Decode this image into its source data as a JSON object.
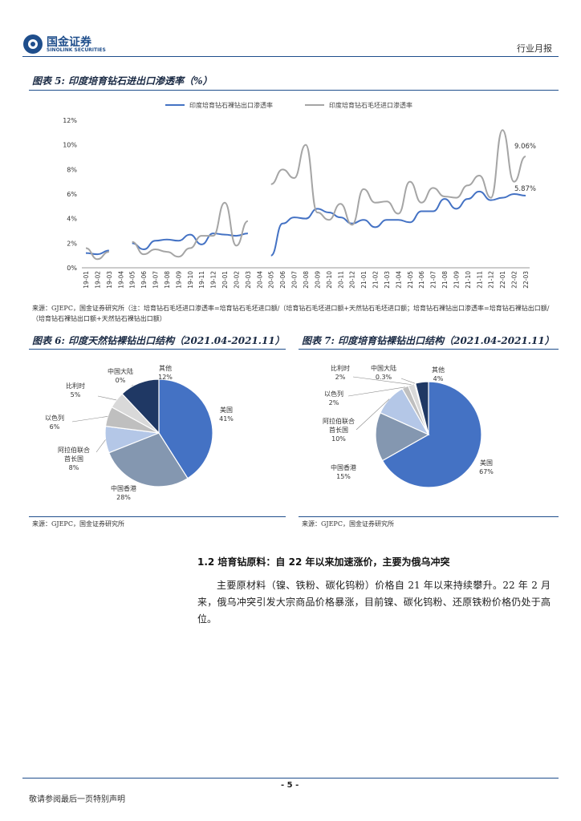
{
  "header": {
    "logo_cn": "国金证券",
    "logo_en": "SINOLINK SECURITIES",
    "report_type": "行业月报"
  },
  "fig5": {
    "title": "图表 5: 印度培育钻石进出口渗透率（%）",
    "source": "来源：GJEPC，国金证券研究所（注：培育钻石毛坯进口渗透率=培育钻石毛坯进口额/（培育钻石毛坯进口额+天然钻石毛坯进口额；培育钻石裸钻出口渗透率=培育钻石裸钻出口额/（培育钻石裸钻出口额+天然钻石裸钻出口额）",
    "chart_data": {
      "type": "line",
      "x": [
        "19-01",
        "19-02",
        "19-03",
        "19-04",
        "19-05",
        "19-06",
        "19-07",
        "19-08",
        "19-09",
        "19-10",
        "19-11",
        "19-12",
        "20-01",
        "20-02",
        "20-03",
        "20-04",
        "20-05",
        "20-06",
        "20-07",
        "20-08",
        "20-09",
        "20-10",
        "20-11",
        "20-12",
        "21-01",
        "21-02",
        "21-03",
        "21-04",
        "21-05",
        "21-06",
        "21-07",
        "21-08",
        "21-09",
        "21-10",
        "21-11",
        "21-12",
        "22-01",
        "22-02",
        "22-03"
      ],
      "yticks": [
        "0%",
        "2%",
        "4%",
        "6%",
        "8%",
        "10%",
        "12%"
      ],
      "ylim": [
        0,
        12
      ],
      "series": [
        {
          "name": "印度培育钻石裸钻出口渗透率",
          "color": "#4472c4",
          "values": [
            1.2,
            1.1,
            1.4,
            null,
            2.0,
            1.5,
            2.2,
            2.3,
            2.2,
            2.7,
            1.9,
            2.8,
            2.7,
            2.6,
            2.8,
            null,
            1.0,
            3.6,
            4.1,
            4.0,
            4.8,
            4.5,
            4.1,
            3.6,
            3.9,
            3.3,
            3.9,
            3.9,
            3.7,
            4.6,
            4.6,
            5.6,
            4.8,
            5.6,
            6.2,
            5.5,
            5.7,
            6.0,
            5.87
          ]
        },
        {
          "name": "印度培育钻石毛坯进口渗透率",
          "color": "#a5a5a5",
          "values": [
            1.6,
            0.7,
            1.3,
            null,
            2.1,
            1.1,
            1.5,
            1.3,
            0.9,
            1.6,
            2.6,
            2.6,
            5.3,
            1.8,
            3.8,
            null,
            6.8,
            8.0,
            7.3,
            10.0,
            4.5,
            3.9,
            5.2,
            3.5,
            6.4,
            5.3,
            5.4,
            4.4,
            7.0,
            5.3,
            6.5,
            5.8,
            5.7,
            6.7,
            7.5,
            5.7,
            11.2,
            7.0,
            9.06
          ]
        }
      ],
      "annotations": [
        "9.06%",
        "5.87%"
      ]
    }
  },
  "fig6": {
    "title": "图表 6: 印度天然钻裸钻出口结构（2021.04-2021.11）",
    "source": "来源：GJEPC，国金证券研究所",
    "chart_data": {
      "type": "pie",
      "slices": [
        {
          "name": "美国",
          "value": 41,
          "label": "41%",
          "color": "#4472c4"
        },
        {
          "name": "中国香港",
          "value": 28,
          "label": "28%",
          "color": "#8497b0"
        },
        {
          "name": "阿拉伯联合首长国",
          "value": 8,
          "label": "8%",
          "color": "#b4c7e7"
        },
        {
          "name": "以色列",
          "value": 6,
          "label": "6%",
          "color": "#bfbfbf"
        },
        {
          "name": "比利时",
          "value": 5,
          "label": "5%",
          "color": "#d9d9d9"
        },
        {
          "name": "中国大陆",
          "value": 0,
          "label": "0%",
          "color": "#8faadc"
        },
        {
          "name": "其他",
          "value": 12,
          "label": "12%",
          "color": "#1f3864"
        }
      ]
    }
  },
  "fig7": {
    "title": "图表 7: 印度培育钻裸钻出口结构（2021.04-2021.11）",
    "source": "来源：GJEPC，国金证券研究所",
    "chart_data": {
      "type": "pie",
      "slices": [
        {
          "name": "美国",
          "value": 67,
          "label": "67%",
          "color": "#4472c4"
        },
        {
          "name": "中国香港",
          "value": 15,
          "label": "15%",
          "color": "#8497b0"
        },
        {
          "name": "阿拉伯联合首长国",
          "value": 10,
          "label": "10%",
          "color": "#b4c7e7"
        },
        {
          "name": "以色列",
          "value": 2,
          "label": "2%",
          "color": "#bfbfbf"
        },
        {
          "name": "比利时",
          "value": 2,
          "label": "2%",
          "color": "#d9d9d9"
        },
        {
          "name": "中国大陆",
          "value": 0.3,
          "label": "0.3%",
          "color": "#8faadc"
        },
        {
          "name": "其他",
          "value": 4,
          "label": "4%",
          "color": "#1f3864"
        }
      ]
    }
  },
  "section": {
    "heading": "1.2 培育钻原料：自 22 年以来加速涨价，主要为俄乌冲突",
    "paragraph": "主要原材料（镍、铁粉、碳化钨粉）价格自 21 年以来持续攀升。22 年 2 月来，俄乌冲突引发大宗商品价格暴涨，目前镍、碳化钨粉、还原铁粉价格仍处于高位。"
  },
  "footer": {
    "page": "- 5 -",
    "disclaimer": "敬请参阅最后一页特别声明"
  }
}
